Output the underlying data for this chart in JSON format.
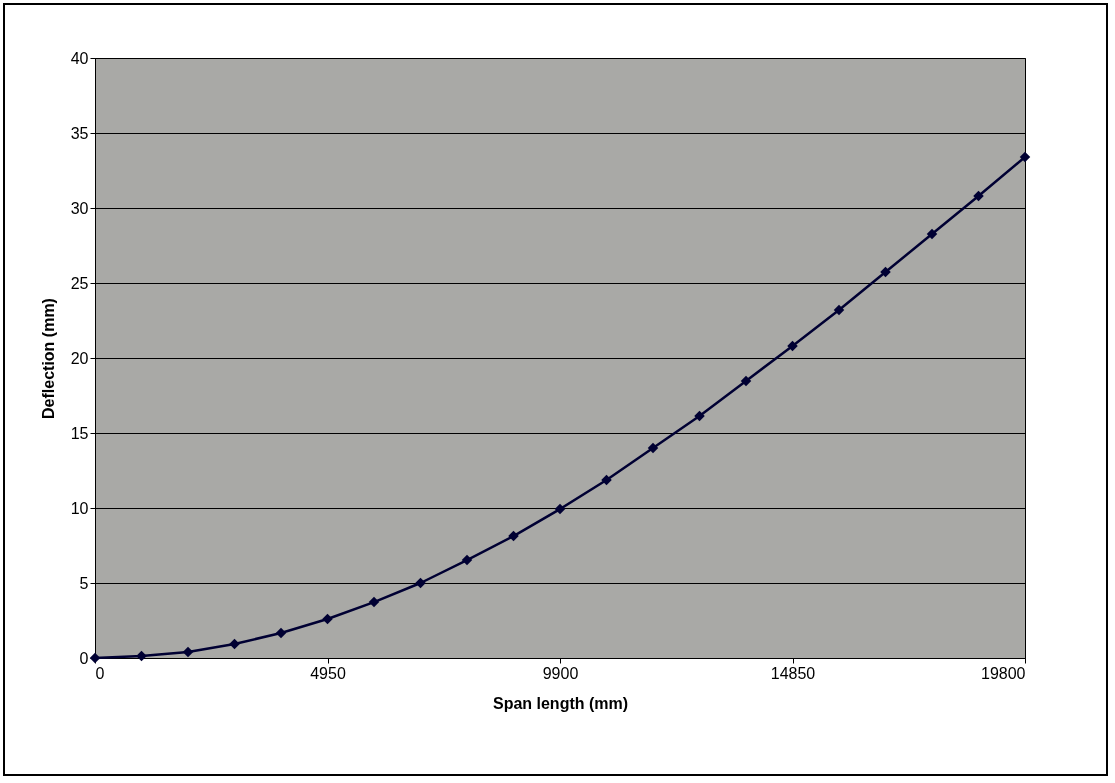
{
  "chart_data": {
    "type": "line",
    "xlabel": "Span length (mm)",
    "ylabel": "Deflection (mm)",
    "x": [
      0,
      990,
      1980,
      2970,
      3960,
      4950,
      5940,
      6930,
      7920,
      8910,
      9900,
      10890,
      11880,
      12870,
      13860,
      14850,
      15840,
      16830,
      17820,
      18810,
      19800
    ],
    "values": [
      0,
      0.13,
      0.4,
      0.93,
      1.67,
      2.6,
      3.73,
      5.0,
      6.53,
      8.13,
      9.93,
      11.87,
      14.0,
      16.13,
      18.47,
      20.8,
      23.2,
      25.73,
      28.27,
      30.8,
      33.4
    ],
    "color": "#000033",
    "xlim": [
      0,
      19800
    ],
    "xticks": [
      0,
      4950,
      9900,
      14850,
      19800
    ],
    "ylim": [
      0,
      40
    ],
    "yticks": [
      0,
      5,
      10,
      15,
      20,
      25,
      30,
      35,
      40
    ],
    "grid": "y",
    "marker": "diamond",
    "line_style": "solid"
  }
}
